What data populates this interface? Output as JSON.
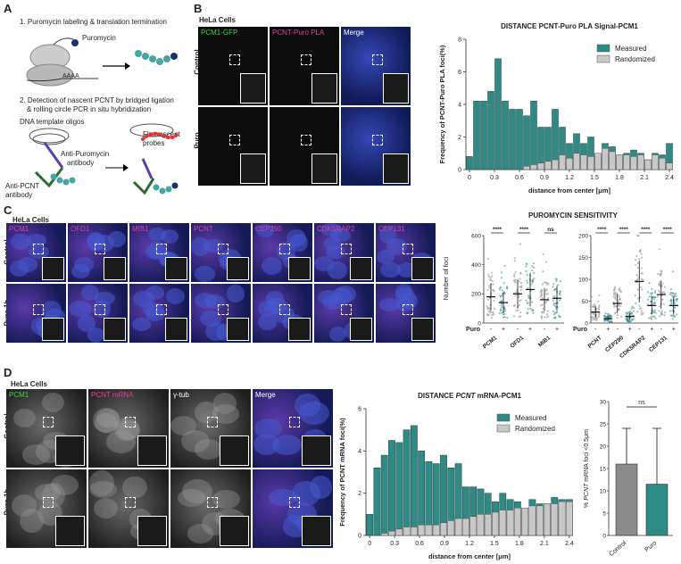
{
  "panelA": {
    "label": "A",
    "step1": "1. Puromycin labeling & translation termination",
    "puromycin": "Puromycin",
    "polyA": "AAAA",
    "step2": "2. Detection of nascent PCNT by bridged ligation",
    "step2b": "& rolling circle PCR in situ hybridization",
    "dna_oligos": "DNA template oligos",
    "fluor": "Fluorescent",
    "probes": "probes",
    "anti_puro": "Anti-Puromycin",
    "antibody": "antibody",
    "anti_pcnt": "Anti-PCNT",
    "antibody2": "antibody"
  },
  "panelB": {
    "label": "B",
    "title": "HeLa Cells",
    "channels": [
      "PCM1-GFP",
      "PCNT-Puro PLA",
      "Merge"
    ],
    "rows": [
      "Control",
      "Puro"
    ]
  },
  "panelC": {
    "label": "C",
    "title": "HeLa Cells",
    "channels": [
      "PCM1",
      "OFD1",
      "MIB1",
      "PCNT",
      "CEP290",
      "CDK5RAP2",
      "CEP131"
    ],
    "rows": [
      "Control",
      "Puro 1h"
    ]
  },
  "panelD": {
    "label": "D",
    "title": "HeLa Cells",
    "channels": [
      "PCM1",
      "PCNT mRNA",
      "γ-tub",
      "Merge"
    ],
    "rows": [
      "Control",
      "Puro 1h"
    ]
  },
  "colors": {
    "measured": "#2f8a86",
    "randomized": "#c8c8c8",
    "magenta": "#e040a0",
    "green": "#40d040",
    "nucleus": "#2030a0"
  },
  "chart_data": [
    {
      "id": "chartB",
      "type": "bar",
      "title": "DISTANCE PCNT-Puro PLA Signal-PCM1",
      "xlabel": "distance from center [μm]",
      "ylabel": "Frequency of PCNT-Puro PLA foci(%)",
      "ylim": [
        0,
        8
      ],
      "yticks": [
        "0",
        "2",
        "4",
        "6",
        "8"
      ],
      "xticks": [
        "0",
        "0.3",
        "0.6",
        "0.9",
        "1.2",
        "1.5",
        "1.8",
        "2.1",
        "2.4"
      ],
      "legend": [
        "Measured",
        "Randomized"
      ],
      "legend_position": "top-right",
      "series": [
        {
          "name": "Measured",
          "values": [
            0.8,
            4.2,
            4.2,
            4.8,
            6.8,
            4.2,
            3.7,
            3.7,
            3.3,
            4.2,
            2.6,
            2.6,
            3.7,
            2.6,
            1.6,
            2.2,
            1.6,
            2.0,
            1.0,
            1.6,
            1.4,
            0.9,
            1.0,
            1.2,
            1.0,
            0.6,
            1.0,
            0.9,
            1.6
          ]
        },
        {
          "name": "Randomized",
          "values": [
            0.0,
            0.0,
            0.0,
            0.0,
            0.0,
            0.0,
            0.0,
            0.0,
            0.2,
            0.3,
            0.4,
            0.5,
            0.6,
            0.9,
            0.7,
            1.0,
            0.9,
            0.8,
            1.0,
            1.3,
            1.1,
            0.9,
            0.9,
            0.8,
            0.9,
            0.6,
            0.9,
            0.7,
            0.4
          ]
        }
      ]
    },
    {
      "id": "chartC",
      "type": "scatter",
      "title": "PUROMYCIN SENSITIVITY",
      "ylabel": "Number of foci",
      "ylim": [
        0,
        600
      ],
      "yticks": [
        "0",
        "200",
        "400",
        "600"
      ],
      "puro_label": "Puro",
      "groups_left": [
        {
          "name": "PCM1",
          "ctrl": 180,
          "puro": 140,
          "sig": "****"
        },
        {
          "name": "OFD1",
          "ctrl": 200,
          "puro": 230,
          "sig": "****"
        },
        {
          "name": "MIB1",
          "ctrl": 160,
          "puro": 170,
          "sig": "ns"
        }
      ],
      "groups_right": [
        {
          "name": "PCNT",
          "ctrl": 25,
          "puro": 10,
          "sig": "****"
        },
        {
          "name": "CEP290",
          "ctrl": 45,
          "puro": 15,
          "sig": "****"
        },
        {
          "name": "CDK5RAP2",
          "ctrl": 95,
          "puro": 40,
          "sig": "****"
        },
        {
          "name": "CEP131",
          "ctrl": 65,
          "puro": 40,
          "sig": "****"
        }
      ],
      "ylim_right": [
        0,
        200
      ],
      "yticks_right": [
        "0",
        "50",
        "100",
        "150",
        "200"
      ],
      "minus": "-",
      "plus": "+"
    },
    {
      "id": "chartD",
      "type": "bar",
      "title_pre": "DISTANCE ",
      "title_em": "PCNT",
      "title_post": " mRNA-PCM1",
      "xlabel": "distance from center [μm]",
      "ylabel": "Frequency of PCNT mRNA foci(%)",
      "ylim": [
        0,
        6
      ],
      "yticks": [
        "0",
        "2",
        "4",
        "6"
      ],
      "xticks": [
        "0",
        "0.3",
        "0.6",
        "0.9",
        "1.2",
        "1.5",
        "1.8",
        "2.1",
        "2.4"
      ],
      "legend": [
        "Measured",
        "Randomized"
      ],
      "legend_position": "top-right",
      "series": [
        {
          "name": "Measured",
          "values": [
            1.0,
            3.2,
            3.8,
            4.5,
            4.4,
            5.0,
            5.2,
            4.0,
            3.5,
            3.4,
            3.8,
            3.2,
            3.4,
            2.3,
            2.3,
            2.2,
            2.0,
            1.6,
            2.0,
            1.7,
            1.6,
            1.2,
            1.7,
            1.5,
            1.5,
            1.8,
            1.7,
            1.7
          ]
        },
        {
          "name": "Randomized",
          "values": [
            0.0,
            0.0,
            0.1,
            0.2,
            0.3,
            0.4,
            0.4,
            0.5,
            0.5,
            0.5,
            0.6,
            0.7,
            0.8,
            0.8,
            0.9,
            1.0,
            1.0,
            1.1,
            1.2,
            1.2,
            1.3,
            1.3,
            1.4,
            1.4,
            1.5,
            1.5,
            1.6,
            1.6
          ]
        }
      ]
    },
    {
      "id": "chartD2",
      "type": "bar",
      "ylabel_pre": "% ",
      "ylabel_em": "PCNT",
      "ylabel_post": " mRNA foci <0.5μm",
      "ylim": [
        0,
        30
      ],
      "yticks": [
        "0",
        "5",
        "10",
        "15",
        "20",
        "25",
        "30"
      ],
      "categories": [
        "Control",
        "Puro"
      ],
      "values": [
        16,
        11.5
      ],
      "errors": [
        8,
        12.5
      ],
      "sig": "ns"
    }
  ]
}
